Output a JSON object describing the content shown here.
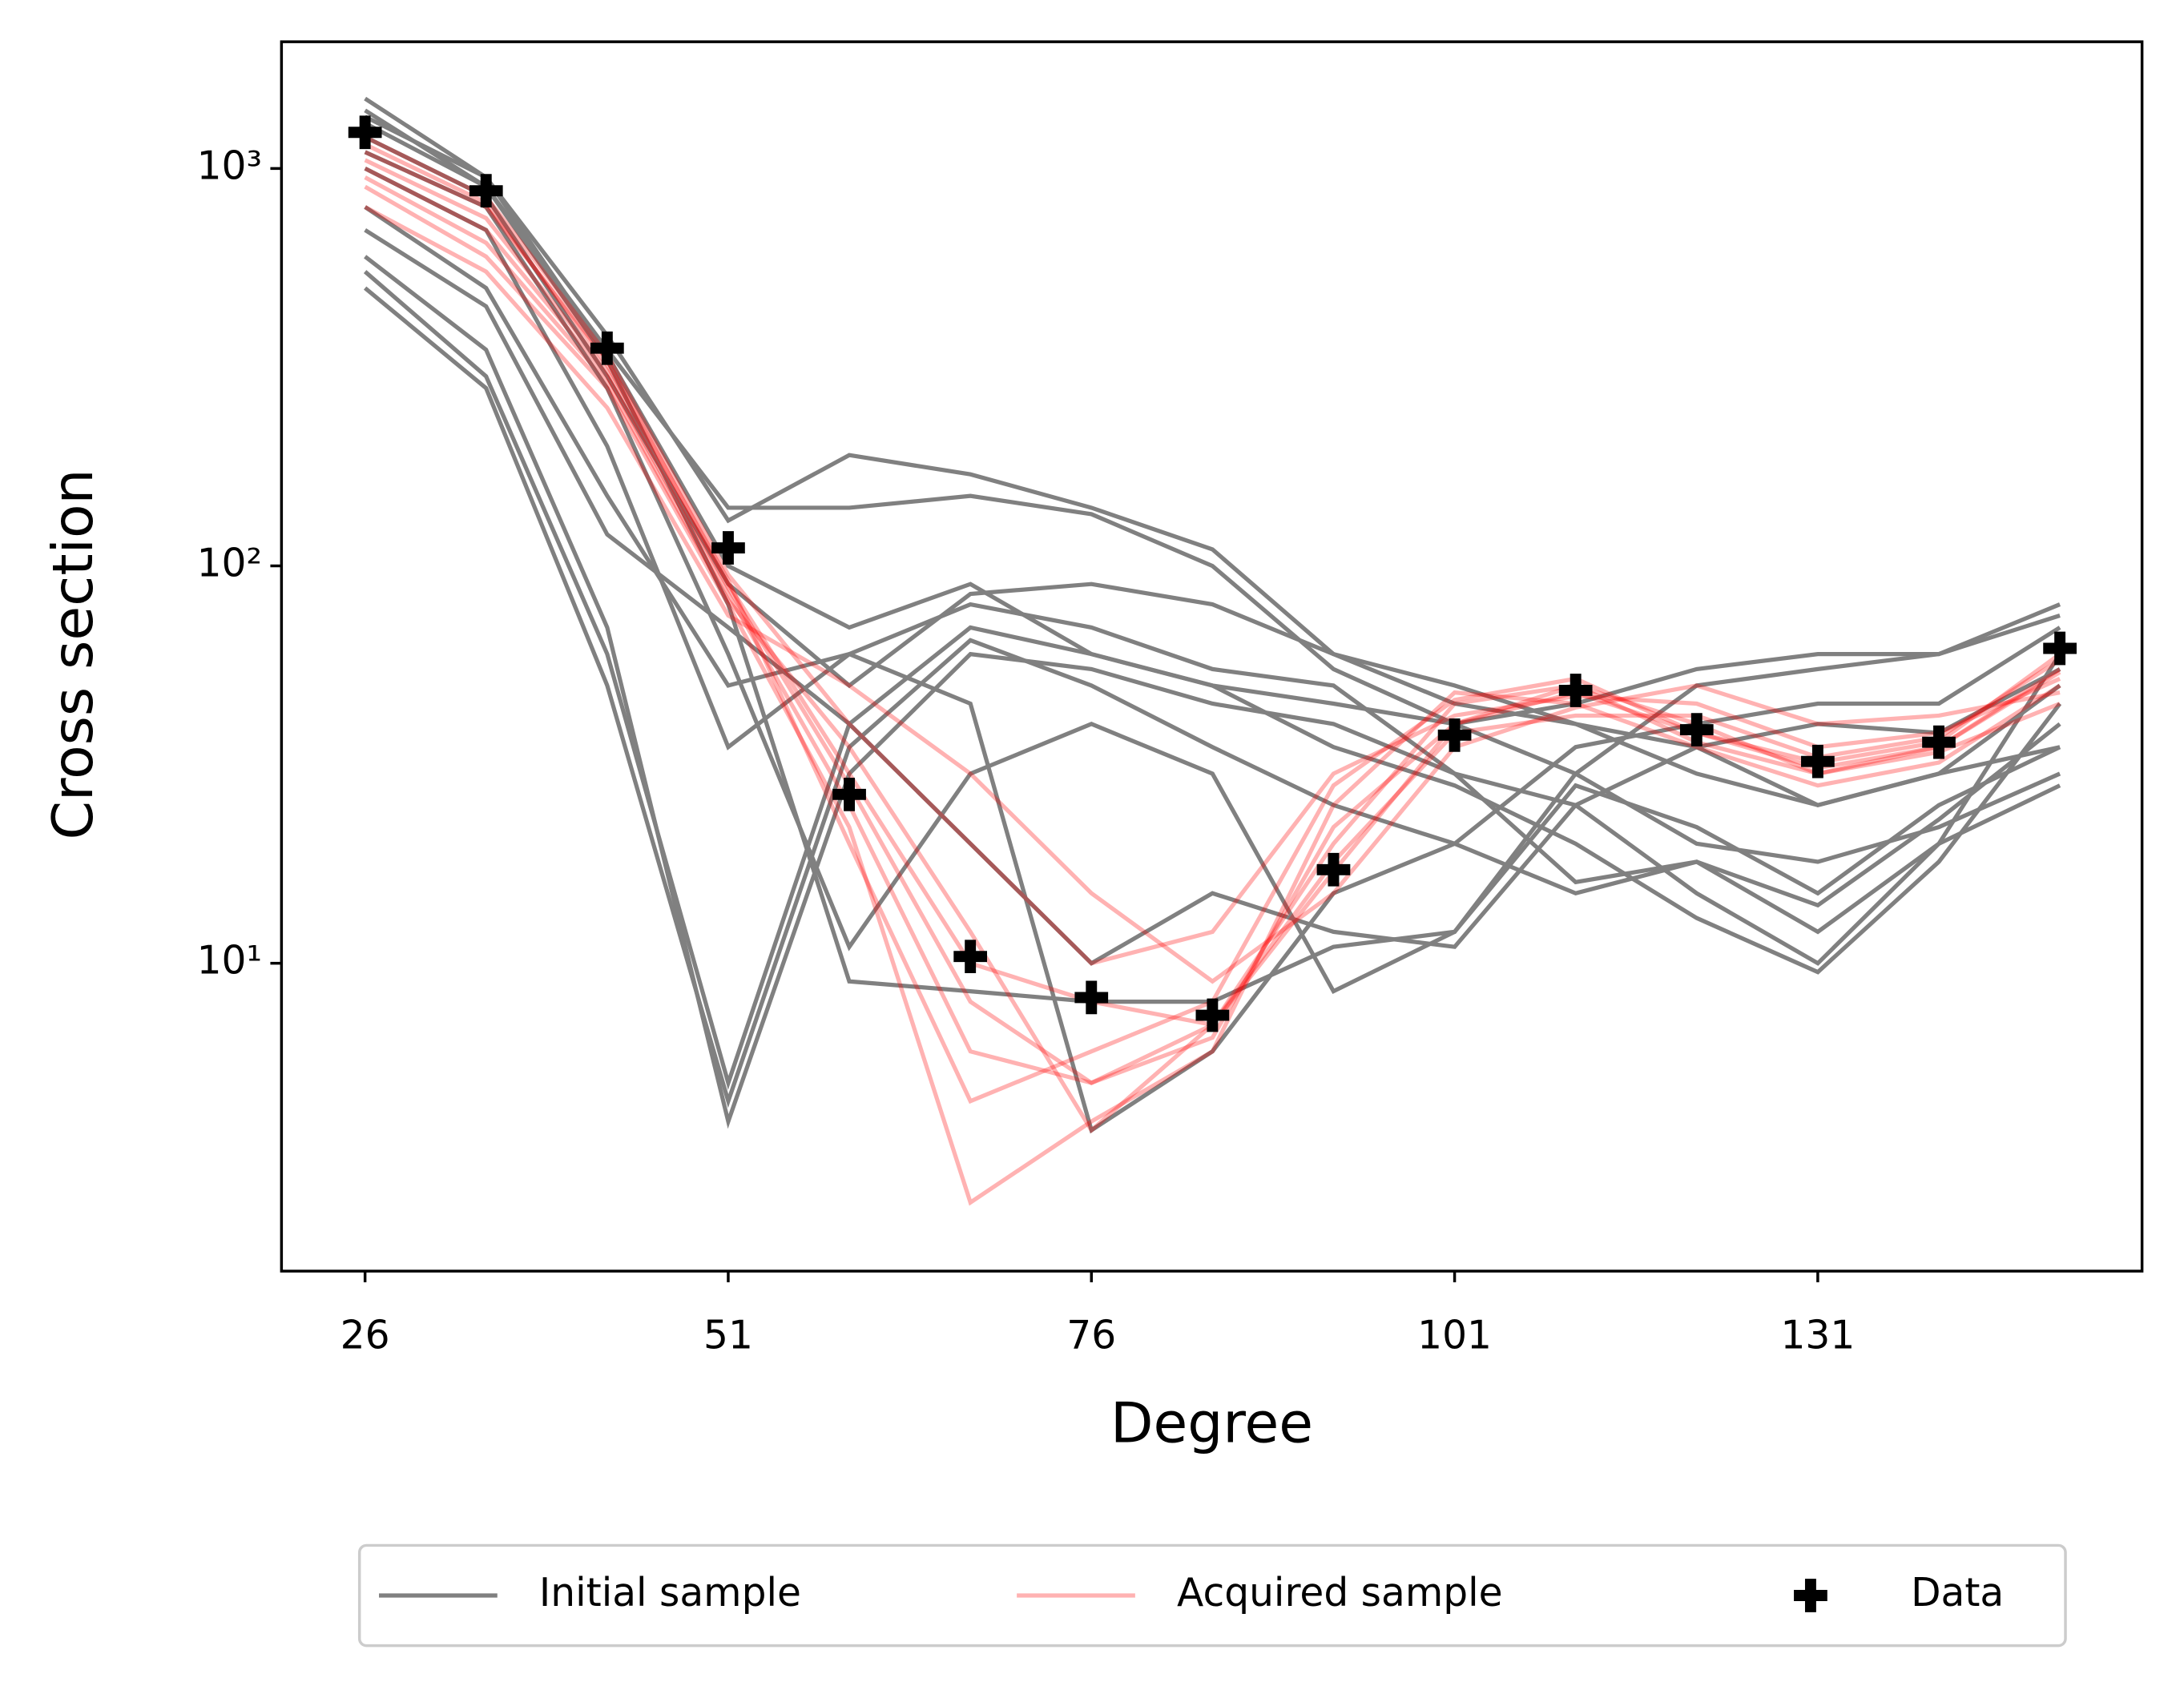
{
  "chart_data": {
    "type": "line",
    "log_y": true,
    "x_label": "Degree",
    "y_label": "Cross section",
    "categories": [
      "26",
      null,
      null,
      "51",
      null,
      null,
      "76",
      null,
      null,
      "101",
      null,
      null,
      "131",
      null,
      null
    ],
    "ylim": [
      1.68,
      2084
    ],
    "yticks": [
      {
        "value": 10,
        "label": "10¹"
      },
      {
        "value": 100,
        "label": "10²"
      },
      {
        "value": 1000,
        "label": "10³"
      }
    ],
    "legend": "bottom",
    "series": [
      {
        "name": "Initial sample",
        "color": "#808080",
        "samples": [
          [
            1500,
            950,
            380,
            130,
            190,
            170,
            140,
            110,
            60,
            45,
            40,
            35,
            25,
            30,
            35
          ],
          [
            1400,
            900,
            350,
            140,
            140,
            150,
            135,
            100,
            55,
            40,
            30,
            20,
            18,
            22,
            30
          ],
          [
            600,
            350,
            70,
            4,
            30,
            60,
            55,
            45,
            40,
            30,
            25,
            15,
            10,
            20,
            60
          ],
          [
            550,
            300,
            60,
            5,
            40,
            70,
            60,
            50,
            35,
            28,
            20,
            13,
            9.5,
            18,
            45
          ],
          [
            500,
            280,
            50,
            4.5,
            35,
            65,
            50,
            35,
            25,
            20,
            15,
            18,
            12,
            20,
            28
          ],
          [
            1300,
            900,
            330,
            80,
            9,
            8.5,
            8,
            8,
            11,
            12,
            30,
            50,
            55,
            60,
            80
          ],
          [
            1200,
            850,
            300,
            90,
            50,
            85,
            90,
            80,
            60,
            50,
            40,
            30,
            25,
            30,
            50
          ],
          [
            1100,
            800,
            280,
            60,
            11,
            30,
            40,
            30,
            8.5,
            12,
            28,
            22,
            15,
            25,
            35
          ],
          [
            800,
            500,
            150,
            50,
            60,
            45,
            3.8,
            6,
            15,
            20,
            35,
            40,
            45,
            45,
            70
          ],
          [
            1000,
            700,
            200,
            35,
            60,
            80,
            70,
            55,
            50,
            30,
            16,
            18,
            14,
            23,
            40
          ],
          [
            700,
            450,
            120,
            70,
            40,
            20,
            10,
            15,
            12,
            11,
            25,
            35,
            40,
            38,
            55
          ],
          [
            1350,
            950,
            340,
            100,
            70,
            90,
            60,
            50,
            45,
            40,
            45,
            55,
            60,
            60,
            75
          ]
        ]
      },
      {
        "name": "Acquired sample",
        "color": "#ff0000",
        "samples": [
          [
            1100,
            800,
            330,
            90,
            30,
            10,
            8,
            7,
            17,
            40,
            48,
            38,
            32,
            36,
            60
          ],
          [
            1000,
            700,
            300,
            85,
            25,
            6,
            5,
            7,
            20,
            45,
            50,
            40,
            30,
            35,
            55
          ],
          [
            900,
            600,
            280,
            80,
            22,
            2.5,
            4,
            6,
            25,
            48,
            45,
            35,
            28,
            32,
            50
          ],
          [
            1200,
            850,
            340,
            95,
            40,
            20,
            10,
            12,
            30,
            42,
            47,
            45,
            35,
            38,
            52
          ],
          [
            800,
            550,
            250,
            75,
            50,
            30,
            15,
            9,
            15,
            35,
            44,
            50,
            40,
            42,
            48
          ],
          [
            1050,
            750,
            310,
            88,
            28,
            8,
            5,
            6.5,
            22,
            40,
            50,
            36,
            30,
            34,
            45
          ],
          [
            950,
            650,
            290,
            82,
            35,
            12,
            3.8,
            7,
            18,
            38,
            42,
            42,
            33,
            37,
            58
          ],
          [
            1150,
            820,
            320,
            92,
            20,
            4.5,
            6,
            8,
            28,
            46,
            52,
            38,
            31,
            35,
            54
          ]
        ]
      },
      {
        "name": "Data",
        "color": "#000000",
        "values": [
          1233,
          879,
          353,
          111,
          26.6,
          10.4,
          8.2,
          7.4,
          17.2,
          37.5,
          48.6,
          38.7,
          32.2,
          36,
          62
        ]
      }
    ]
  }
}
